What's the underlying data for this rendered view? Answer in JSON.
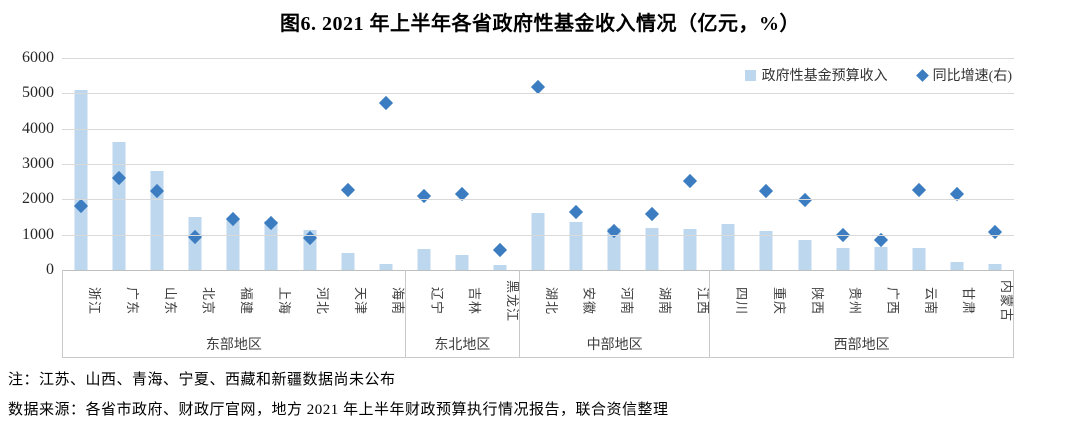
{
  "title": "图6. 2021 年上半年各省政府性基金收入情况（亿元，%）",
  "legend": {
    "bar_label": "政府性基金预算收入",
    "growth_label": "同比增速(右)"
  },
  "notes": {
    "unpublished": "注：江苏、山西、青海、宁夏、西藏和新疆数据尚未公布",
    "source": "数据来源：各省市政府、财政厅官网，地方 2021 年上半年财政预算执行情况报告，联合资信整理"
  },
  "colors": {
    "bar": "#bdd7ee",
    "diamond": "#3c7cc0",
    "gridline": "#d9d9d9",
    "axis_line": "#bfbfbf",
    "band_border": "#c9c9c9",
    "tick_text": "#262626",
    "category_text": "#404040"
  },
  "chart_data": {
    "type": "bar",
    "title": "图6. 2021 年上半年各省政府性基金收入情况（亿元，%）",
    "ylabel_left": "亿元",
    "ylabel_right": "%",
    "left_axis": {
      "min": 0,
      "max": 6000,
      "ticks": [
        "6000",
        "5000",
        "4000",
        "3000",
        "2000",
        "1000",
        "0"
      ],
      "grid": true
    },
    "right_axis": {
      "min": -20,
      "max": 120,
      "ticks": [
        "120%",
        "100%",
        "80%",
        "60%",
        "40%",
        "20%",
        "0%",
        "-20%"
      ]
    },
    "legend_position": "top-right-inside",
    "series_names": [
      "政府性基金预算收入",
      "同比增速(右)"
    ],
    "groups": [
      {
        "region": "东部地区",
        "provinces": [
          {
            "name": "浙江",
            "revenue": 5100,
            "growth_pct": 22
          },
          {
            "name": "广东",
            "revenue": 3620,
            "growth_pct": 41
          },
          {
            "name": "山东",
            "revenue": 2790,
            "growth_pct": 32
          },
          {
            "name": "北京",
            "revenue": 1500,
            "growth_pct": 2
          },
          {
            "name": "福建",
            "revenue": 1430,
            "growth_pct": 14
          },
          {
            "name": "上海",
            "revenue": 1400,
            "growth_pct": 11
          },
          {
            "name": "河北",
            "revenue": 1130,
            "growth_pct": 1
          },
          {
            "name": "天津",
            "revenue": 480,
            "growth_pct": 33
          },
          {
            "name": "海南",
            "revenue": 160,
            "growth_pct": 90
          }
        ]
      },
      {
        "region": "东北地区",
        "provinces": [
          {
            "name": "辽宁",
            "revenue": 590,
            "growth_pct": 29
          },
          {
            "name": "吉林",
            "revenue": 420,
            "growth_pct": 30
          },
          {
            "name": "黑龙江",
            "revenue": 130,
            "growth_pct": -7
          }
        ]
      },
      {
        "region": "中部地区",
        "provinces": [
          {
            "name": "湖北",
            "revenue": 1620,
            "growth_pct": 101
          },
          {
            "name": "安徽",
            "revenue": 1350,
            "growth_pct": 18
          },
          {
            "name": "河南",
            "revenue": 1180,
            "growth_pct": 6
          },
          {
            "name": "湖南",
            "revenue": 1200,
            "growth_pct": 17
          },
          {
            "name": "江西",
            "revenue": 1150,
            "growth_pct": 39
          }
        ]
      },
      {
        "region": "西部地区",
        "provinces": [
          {
            "name": "四川",
            "revenue": 1310,
            "growth_pct": null
          },
          {
            "name": "重庆",
            "revenue": 1100,
            "growth_pct": 32
          },
          {
            "name": "陕西",
            "revenue": 850,
            "growth_pct": 26
          },
          {
            "name": "贵州",
            "revenue": 620,
            "growth_pct": 3
          },
          {
            "name": "广西",
            "revenue": 650,
            "growth_pct": 0
          },
          {
            "name": "云南",
            "revenue": 610,
            "growth_pct": 33
          },
          {
            "name": "甘肃",
            "revenue": 220,
            "growth_pct": 30
          },
          {
            "name": "内蒙古",
            "revenue": 170,
            "growth_pct": 5
          }
        ]
      }
    ]
  }
}
